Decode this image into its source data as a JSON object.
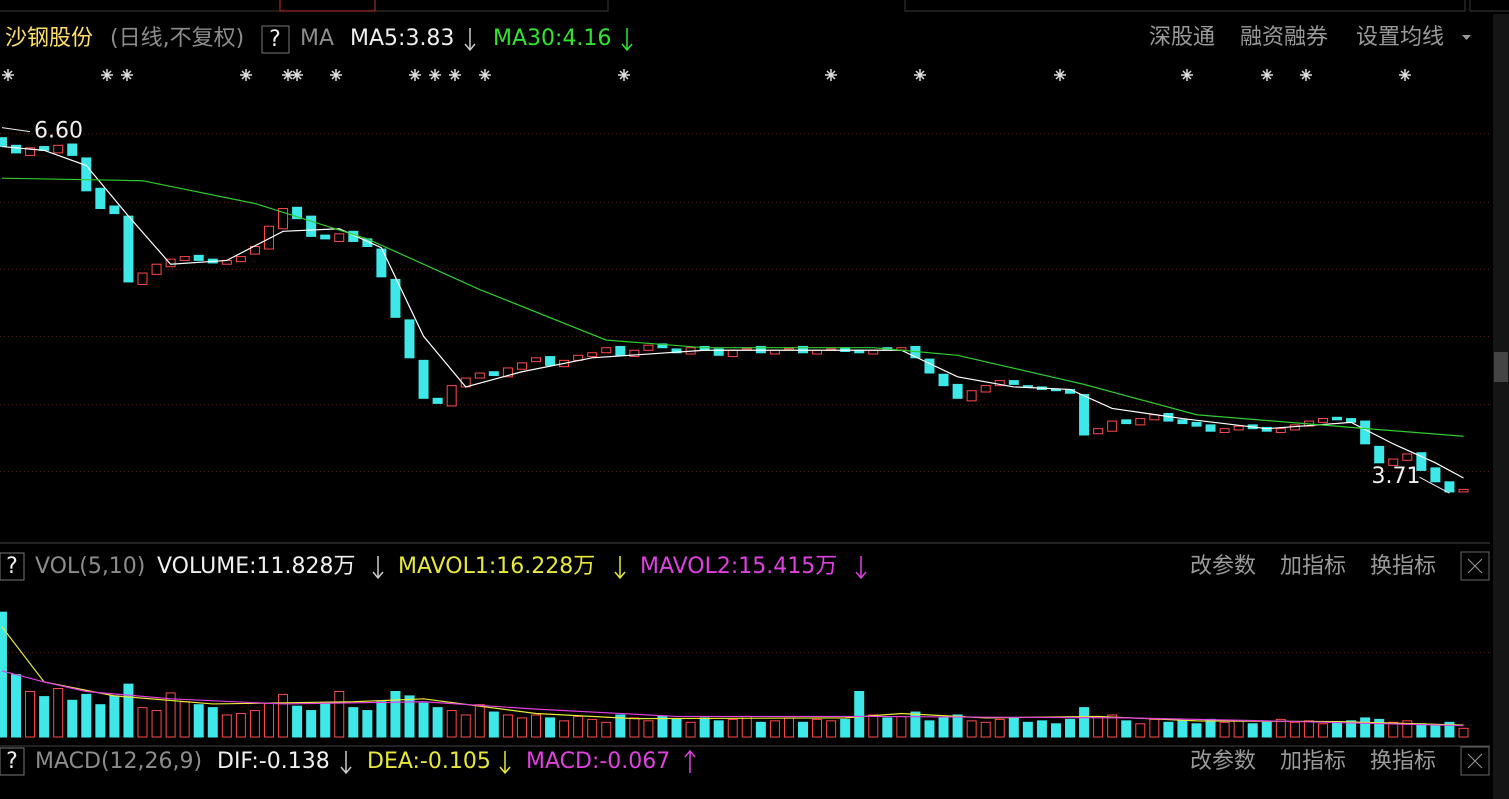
{
  "header": {
    "stock": "沙钢股份",
    "period": "(日线,不复权)",
    "help": "?",
    "ma": "MA",
    "ma5": "MA5:3.83",
    "ma30": "MA30:4.16",
    "links": [
      "深股通",
      "融资融券",
      "设置均线"
    ]
  },
  "vol_header": {
    "help": "?",
    "name": "VOL(5,10)",
    "volume": "VOLUME:11.828万",
    "mavol1": "MAVOL1:16.228万",
    "mavol2": "MAVOL2:15.415万",
    "buttons": [
      "改参数",
      "加指标",
      "换指标"
    ]
  },
  "macd_header": {
    "help": "?",
    "name": "MACD(12,26,9)",
    "dif": "DIF:-0.138",
    "dea": "DEA:-0.105",
    "macd": "MACD:-0.067",
    "buttons": [
      "改参数",
      "加指标",
      "换指标"
    ]
  },
  "chart_data": [
    {
      "type": "candlestick",
      "up_color": "#ff4a4a",
      "down_color": "#3ee8e8",
      "xlim": [
        -0.14,
        105.6
      ],
      "ylim": [
        3.34,
        7.15
      ],
      "yticks": [
        3.88,
        4.41,
        4.95,
        5.48,
        6.01,
        6.55
      ],
      "grid": true,
      "open": [
        6.52,
        6.46,
        6.38,
        6.45,
        6.4,
        6.47,
        6.36,
        6.12,
        5.98,
        5.9,
        5.36,
        5.44,
        5.5,
        5.55,
        5.59,
        5.56,
        5.52,
        5.54,
        5.6,
        5.64,
        5.8,
        5.97,
        5.9,
        5.75,
        5.7,
        5.78,
        5.72,
        5.64,
        5.4,
        5.08,
        4.76,
        4.46,
        4.4,
        4.55,
        4.62,
        4.67,
        4.63,
        4.69,
        4.75,
        4.79,
        4.71,
        4.76,
        4.79,
        4.82,
        4.87,
        4.79,
        4.84,
        4.89,
        4.85,
        4.81,
        4.87,
        4.85,
        4.79,
        4.85,
        4.87,
        4.81,
        4.85,
        4.87,
        4.81,
        4.84,
        4.86,
        4.84,
        4.81,
        4.86,
        4.84,
        4.87,
        4.77,
        4.65,
        4.57,
        4.44,
        4.51,
        4.56,
        4.6,
        4.56,
        4.55,
        4.53,
        4.53,
        4.49,
        4.18,
        4.2,
        4.29,
        4.25,
        4.29,
        4.34,
        4.29,
        4.27,
        4.25,
        4.19,
        4.21,
        4.25,
        4.23,
        4.19,
        4.21,
        4.24,
        4.27,
        4.31,
        4.3,
        4.28,
        4.08,
        3.93,
        3.97,
        4.03,
        3.91,
        3.8,
        3.72
      ],
      "close": [
        6.45,
        6.4,
        6.44,
        6.42,
        6.46,
        6.38,
        6.1,
        5.96,
        5.92,
        5.38,
        5.45,
        5.52,
        5.56,
        5.58,
        5.55,
        5.53,
        5.55,
        5.58,
        5.66,
        5.82,
        5.96,
        5.88,
        5.74,
        5.72,
        5.76,
        5.7,
        5.66,
        5.42,
        5.1,
        4.78,
        4.46,
        4.42,
        4.56,
        4.62,
        4.66,
        4.64,
        4.7,
        4.74,
        4.78,
        4.72,
        4.76,
        4.8,
        4.82,
        4.86,
        4.8,
        4.84,
        4.88,
        4.86,
        4.82,
        4.86,
        4.84,
        4.8,
        4.84,
        4.86,
        4.82,
        4.84,
        4.86,
        4.82,
        4.84,
        4.85,
        4.83,
        4.82,
        4.84,
        4.85,
        4.86,
        4.78,
        4.66,
        4.56,
        4.46,
        4.52,
        4.56,
        4.6,
        4.57,
        4.55,
        4.53,
        4.52,
        4.5,
        4.17,
        4.22,
        4.28,
        4.26,
        4.3,
        4.33,
        4.28,
        4.26,
        4.24,
        4.2,
        4.22,
        4.24,
        4.22,
        4.2,
        4.22,
        4.25,
        4.28,
        4.3,
        4.29,
        4.27,
        4.1,
        3.95,
        3.98,
        4.02,
        3.89,
        3.8,
        3.72,
        3.74
      ],
      "lines": [
        {
          "color": "#ffffff",
          "x": [
            0,
            3,
            6,
            9,
            12,
            16,
            20,
            24,
            27,
            30,
            33,
            37,
            42,
            50,
            60,
            64,
            68,
            72,
            76,
            79,
            84,
            90,
            96,
            99,
            102,
            104
          ],
          "values": [
            6.45,
            6.42,
            6.3,
            5.9,
            5.52,
            5.55,
            5.78,
            5.8,
            5.65,
            4.95,
            4.55,
            4.67,
            4.78,
            4.84,
            4.84,
            4.84,
            4.63,
            4.55,
            4.53,
            4.38,
            4.3,
            4.22,
            4.27,
            4.1,
            3.95,
            3.83
          ]
        },
        {
          "color": "#2ecc2e",
          "x": [
            0,
            10,
            18,
            26,
            34,
            43,
            50,
            62,
            68,
            77,
            85,
            96,
            104
          ],
          "values": [
            6.2,
            6.18,
            6.0,
            5.72,
            5.32,
            4.92,
            4.86,
            4.86,
            4.8,
            4.57,
            4.33,
            4.23,
            4.16
          ]
        }
      ],
      "annotations": [
        {
          "x": 0,
          "value": 6.6,
          "label": "6.60"
        },
        {
          "x": 103,
          "value": 3.71,
          "label": "3.71"
        }
      ]
    },
    {
      "type": "volume",
      "xlim": [
        -0.14,
        105.6
      ],
      "ylim": [
        0,
        207
      ],
      "yticks": [
        115
      ],
      "grid": true,
      "values": [
        170,
        85,
        62,
        55,
        66,
        50,
        58,
        44,
        56,
        72,
        40,
        36,
        60,
        48,
        44,
        40,
        30,
        32,
        36,
        46,
        58,
        42,
        36,
        46,
        62,
        40,
        36,
        48,
        62,
        56,
        46,
        40,
        36,
        30,
        44,
        34,
        30,
        26,
        30,
        26,
        22,
        28,
        24,
        20,
        30,
        26,
        22,
        28,
        24,
        20,
        26,
        22,
        24,
        28,
        20,
        22,
        26,
        20,
        24,
        22,
        24,
        62,
        30,
        26,
        28,
        34,
        22,
        26,
        30,
        22,
        20,
        24,
        26,
        20,
        22,
        18,
        24,
        40,
        28,
        30,
        22,
        18,
        24,
        20,
        22,
        18,
        24,
        20,
        22,
        18,
        20,
        24,
        20,
        22,
        18,
        20,
        22,
        26,
        24,
        20,
        22,
        18,
        16,
        20,
        11.828
      ],
      "lines": [
        {
          "color": "#e8e83a",
          "x": [
            0,
            3,
            8,
            15,
            25,
            30,
            38,
            45,
            60,
            64,
            70,
            78,
            85,
            95,
            104
          ],
          "values": [
            150,
            75,
            56,
            45,
            48,
            52,
            32,
            25,
            26,
            32,
            26,
            28,
            22,
            21,
            16.228
          ]
        },
        {
          "color": "#e040e0",
          "x": [
            0,
            3,
            6,
            12,
            20,
            30,
            38,
            48,
            62,
            70,
            80,
            90,
            104
          ],
          "values": [
            90,
            75,
            62,
            52,
            45,
            48,
            38,
            28,
            28,
            27,
            26,
            22,
            15.415
          ]
        }
      ]
    }
  ]
}
